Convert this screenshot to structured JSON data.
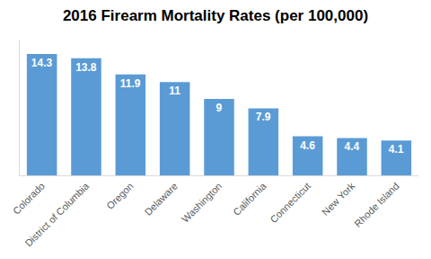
{
  "chart_data": {
    "type": "bar",
    "title": "2016 Firearm Mortality Rates (per 100,000)",
    "categories": [
      "Colorado",
      "District of Columbia",
      "Oregon",
      "Delaware",
      "Washington",
      "California",
      "Connecticut",
      "New York",
      "Rhode Island"
    ],
    "values": [
      14.3,
      13.8,
      11.9,
      11,
      9,
      7.9,
      4.6,
      4.4,
      4.1
    ],
    "color": "#5b9bd5",
    "ylim": [
      0,
      16
    ],
    "grid": false,
    "data_labels": true,
    "tick_labels": "x"
  }
}
